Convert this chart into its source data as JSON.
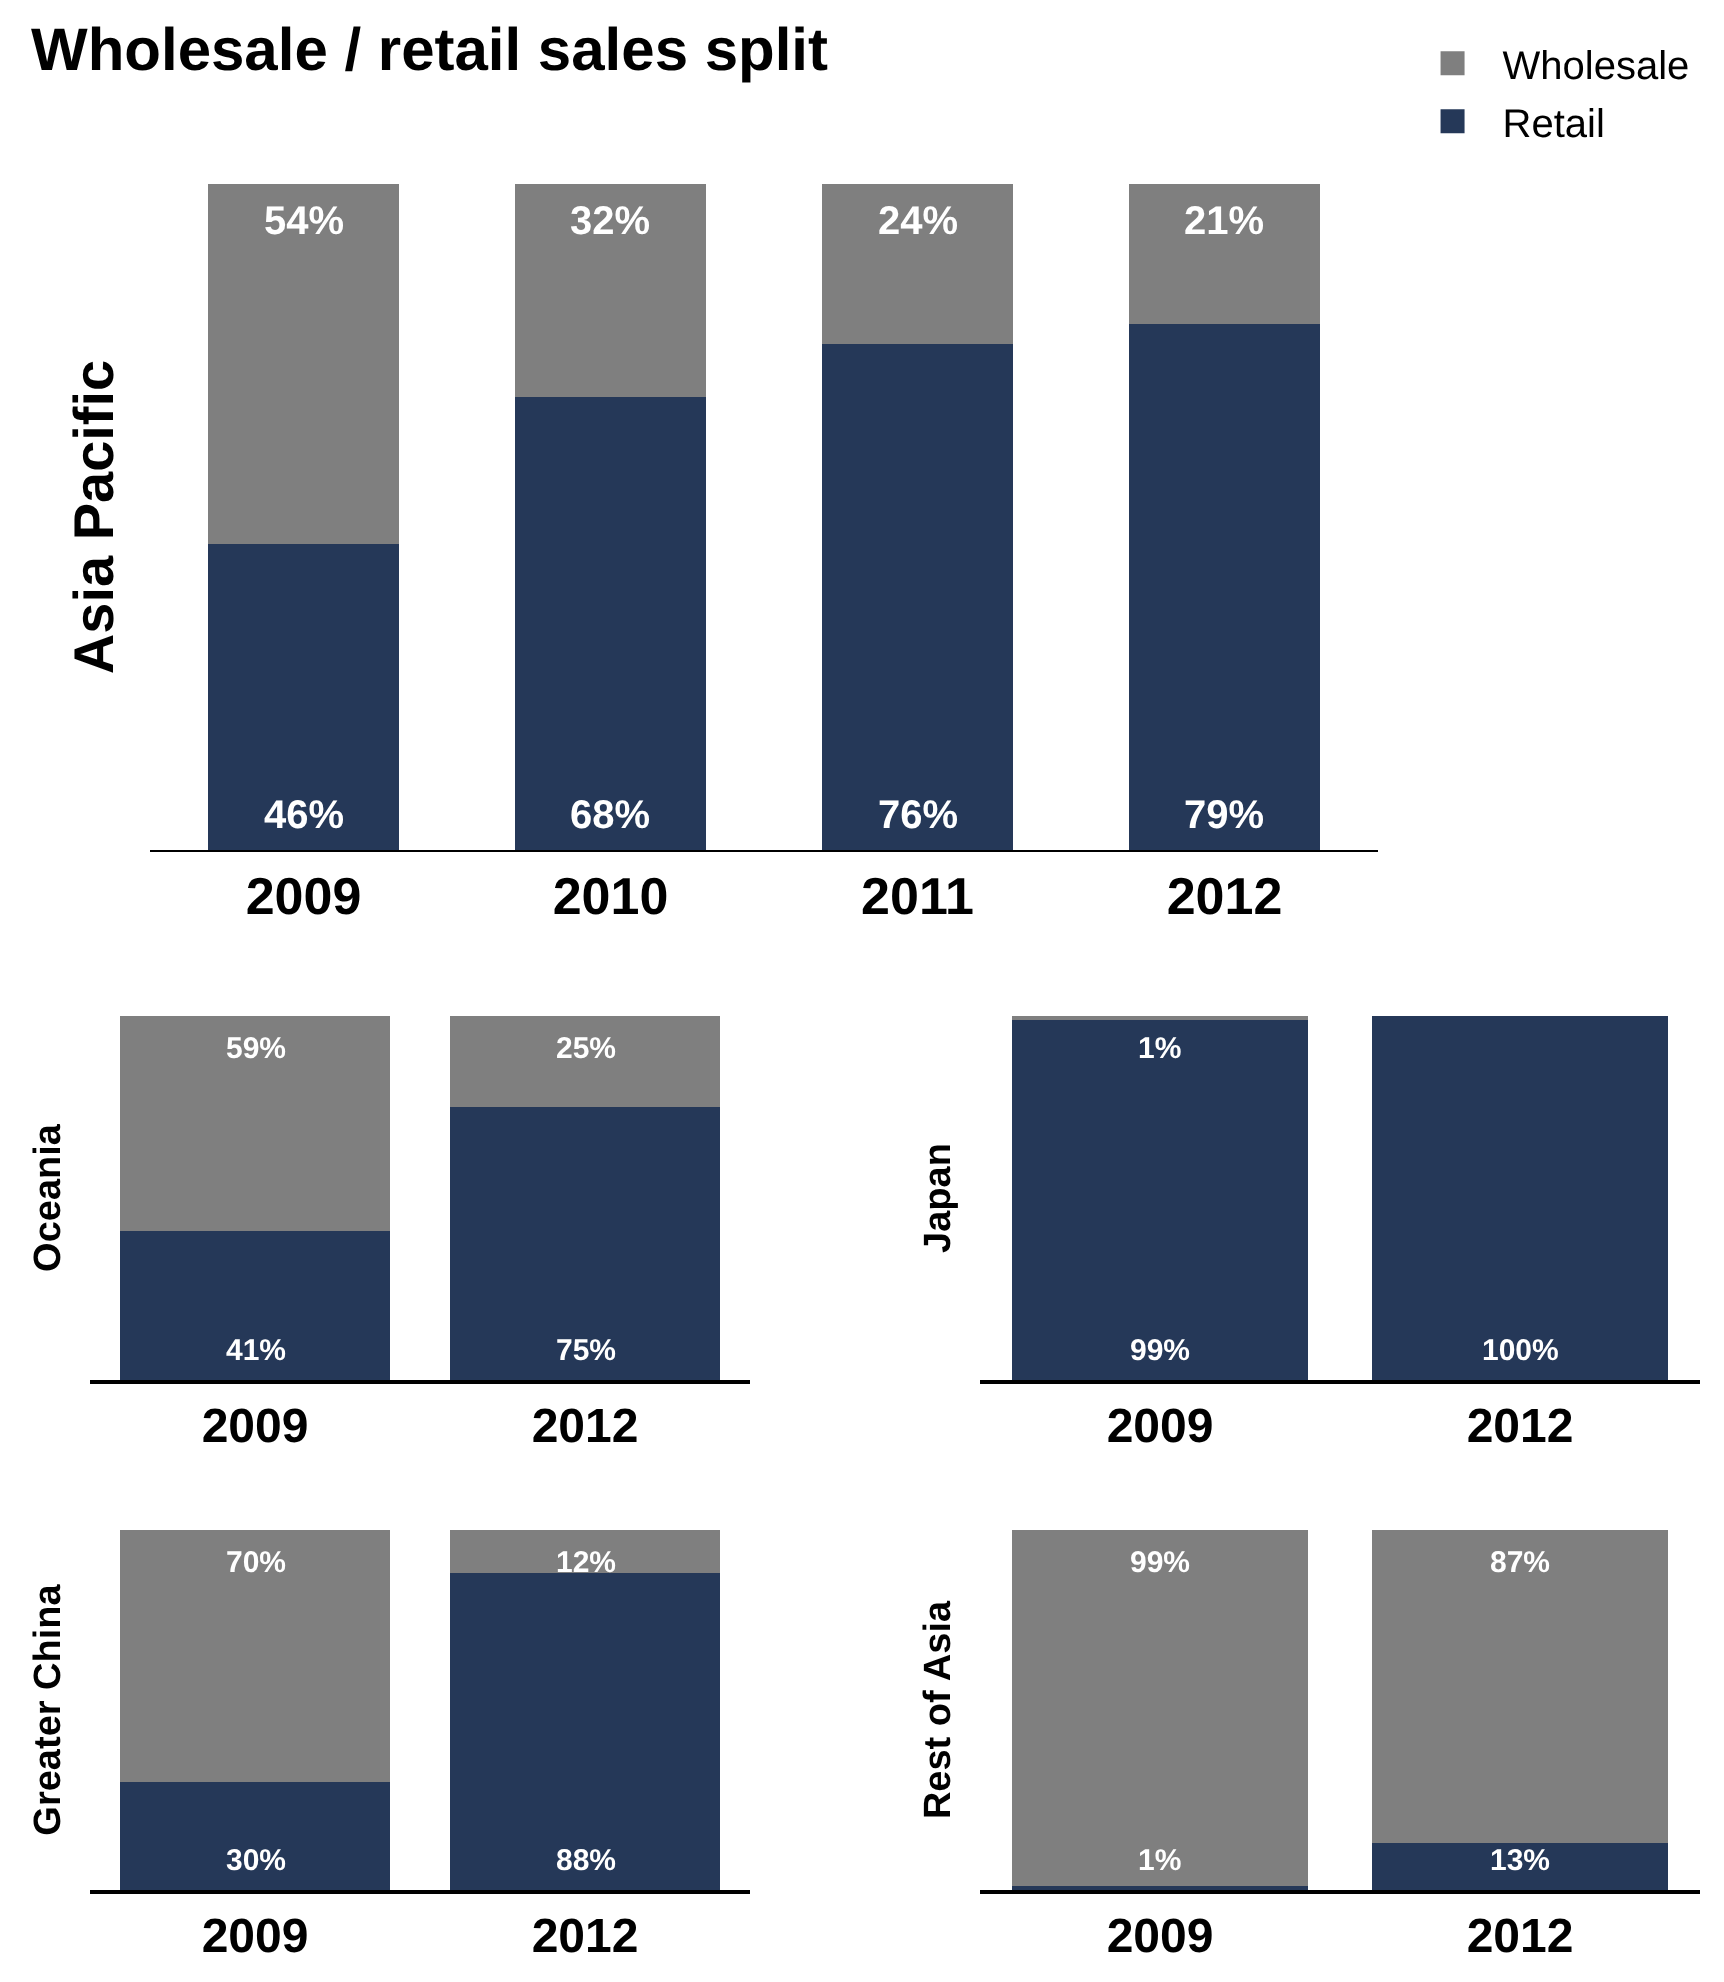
{
  "chart_data": [
    {
      "type": "bar",
      "title": "Wholesale / retail sales split",
      "ylabel": "Asia Pacific",
      "categories": [
        "2009",
        "2010",
        "2011",
        "2012"
      ],
      "stacked": true,
      "ylim": [
        0,
        100
      ],
      "tick_labels": "x",
      "legend": "top right",
      "series": [
        {
          "name": "Retail",
          "color": "#253858",
          "values": [
            46,
            68,
            76,
            79
          ],
          "value_labels": [
            "46%",
            "68%",
            "76%",
            "79%"
          ]
        },
        {
          "name": "Wholesale",
          "color": "#7f7f7f",
          "values": [
            54,
            32,
            24,
            21
          ],
          "value_labels": [
            "54%",
            "32%",
            "24%",
            "21%"
          ]
        }
      ]
    },
    {
      "type": "bar",
      "ylabel": "Oceania",
      "categories": [
        "2009",
        "2012"
      ],
      "stacked": true,
      "ylim": [
        0,
        100
      ],
      "tick_labels": "x",
      "series": [
        {
          "color": "#253858",
          "values": [
            41,
            75
          ],
          "value_labels": [
            "41%",
            "75%"
          ]
        },
        {
          "color": "#7f7f7f",
          "values": [
            59,
            25
          ],
          "value_labels": [
            "59%",
            "25%"
          ]
        }
      ]
    },
    {
      "type": "bar",
      "ylabel": "Japan",
      "categories": [
        "2009",
        "2012"
      ],
      "stacked": true,
      "ylim": [
        0,
        100
      ],
      "tick_labels": "x",
      "series": [
        {
          "color": "#253858",
          "values": [
            99,
            100
          ],
          "value_labels": [
            "99%",
            "100%"
          ]
        },
        {
          "color": "#7f7f7f",
          "values": [
            1,
            0
          ],
          "value_labels": [
            "1%",
            null
          ]
        }
      ]
    },
    {
      "type": "bar",
      "ylabel": "Greater China",
      "categories": [
        "2009",
        "2012"
      ],
      "stacked": true,
      "ylim": [
        0,
        100
      ],
      "tick_labels": "x",
      "series": [
        {
          "color": "#253858",
          "values": [
            30,
            88
          ],
          "value_labels": [
            "30%",
            "88%"
          ]
        },
        {
          "color": "#7f7f7f",
          "values": [
            70,
            12
          ],
          "value_labels": [
            "70%",
            "12%"
          ]
        }
      ]
    },
    {
      "type": "bar",
      "ylabel": "Rest of Asia",
      "categories": [
        "2009",
        "2012"
      ],
      "stacked": true,
      "ylim": [
        0,
        100
      ],
      "tick_labels": "x",
      "series": [
        {
          "color": "#253858",
          "values": [
            1,
            13
          ],
          "value_labels": [
            "1%",
            "13%"
          ]
        },
        {
          "color": "#7f7f7f",
          "values": [
            99,
            87
          ],
          "value_labels": [
            "99%",
            "87%"
          ]
        }
      ]
    }
  ]
}
